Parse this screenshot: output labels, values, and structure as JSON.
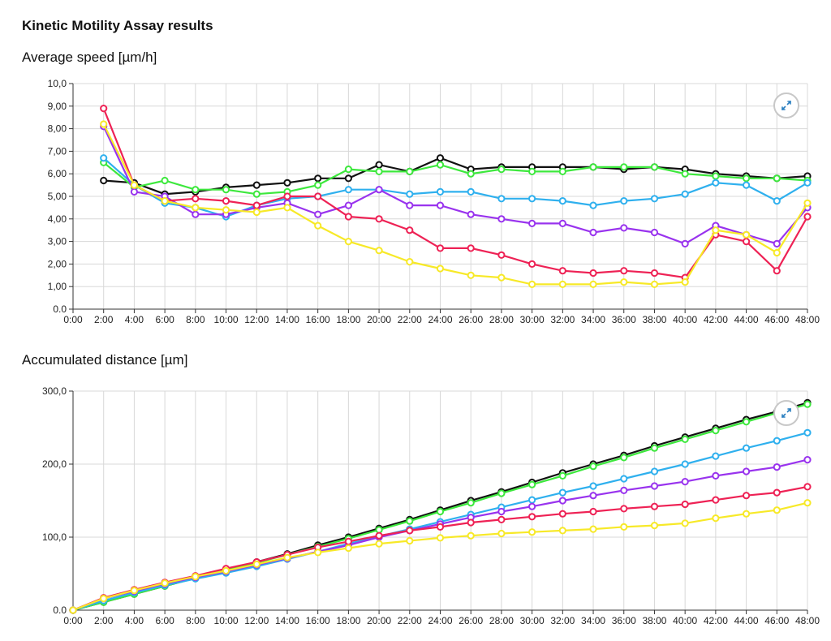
{
  "page": {
    "title": "Kinetic Motility Assay results"
  },
  "colors": {
    "black": "#111111",
    "green": "#3de83d",
    "blue": "#2fb0ee",
    "purple": "#9933ee",
    "red": "#ee2255",
    "yellow": "#f7e928"
  },
  "icons": {
    "expand": "expand-icon"
  },
  "chart_data": [
    {
      "type": "line",
      "title": "Average speed [µm/h]",
      "xlabel": "",
      "ylabel": "",
      "x": [
        "0:00",
        "2:00",
        "4:00",
        "6:00",
        "8:00",
        "10:00",
        "12:00",
        "14:00",
        "16:00",
        "18:00",
        "20:00",
        "22:00",
        "24:00",
        "26:00",
        "28:00",
        "30:00",
        "32:00",
        "34:00",
        "36:00",
        "38:00",
        "40:00",
        "42:00",
        "44:00",
        "46:00",
        "48:00"
      ],
      "ylim": [
        0,
        10
      ],
      "yticks": [
        "0.0",
        "1,00",
        "2,00",
        "3,00",
        "4,00",
        "5,00",
        "6,00",
        "7,00",
        "8,00",
        "9,00",
        "10,0"
      ],
      "grid": true,
      "series": [
        {
          "name": "black",
          "color": "#111111",
          "values": [
            null,
            5.7,
            5.6,
            5.1,
            5.2,
            5.4,
            5.5,
            5.6,
            5.8,
            5.8,
            6.4,
            6.1,
            6.7,
            6.2,
            6.3,
            6.3,
            6.3,
            6.3,
            6.2,
            6.3,
            6.2,
            6.0,
            5.9,
            5.8,
            5.9
          ]
        },
        {
          "name": "green",
          "color": "#3de83d",
          "values": [
            null,
            6.5,
            5.4,
            5.7,
            5.3,
            5.3,
            5.1,
            5.2,
            5.5,
            6.2,
            6.1,
            6.1,
            6.4,
            6.0,
            6.2,
            6.1,
            6.1,
            6.3,
            6.3,
            6.3,
            6.0,
            5.9,
            5.8,
            5.8,
            5.7
          ]
        },
        {
          "name": "blue",
          "color": "#2fb0ee",
          "values": [
            null,
            6.7,
            5.5,
            4.7,
            4.5,
            4.1,
            4.6,
            4.9,
            5.0,
            5.3,
            5.3,
            5.1,
            5.2,
            5.2,
            4.9,
            4.9,
            4.8,
            4.6,
            4.8,
            4.9,
            5.1,
            5.6,
            5.5,
            4.8,
            5.6
          ]
        },
        {
          "name": "purple",
          "color": "#9933ee",
          "values": [
            null,
            8.1,
            5.2,
            5.0,
            4.2,
            4.2,
            4.5,
            4.7,
            4.2,
            4.6,
            5.3,
            4.6,
            4.6,
            4.2,
            4.0,
            3.8,
            3.8,
            3.4,
            3.6,
            3.4,
            2.9,
            3.7,
            3.3,
            2.9,
            4.5
          ]
        },
        {
          "name": "red",
          "color": "#ee2255",
          "values": [
            null,
            8.9,
            5.5,
            4.8,
            4.9,
            4.8,
            4.6,
            5.0,
            5.0,
            4.1,
            4.0,
            3.5,
            2.7,
            2.7,
            2.4,
            2.0,
            1.7,
            1.6,
            1.7,
            1.6,
            1.4,
            3.3,
            3.0,
            1.7,
            4.1
          ]
        },
        {
          "name": "yellow",
          "color": "#f7e928",
          "values": [
            null,
            8.2,
            5.5,
            4.8,
            4.5,
            4.4,
            4.3,
            4.5,
            3.7,
            3.0,
            2.6,
            2.1,
            1.8,
            1.5,
            1.4,
            1.1,
            1.1,
            1.1,
            1.2,
            1.1,
            1.2,
            3.5,
            3.3,
            2.5,
            4.7
          ]
        }
      ]
    },
    {
      "type": "line",
      "title": "Accumulated distance [µm]",
      "xlabel": "",
      "ylabel": "",
      "x": [
        "0:00",
        "2:00",
        "4:00",
        "6:00",
        "8:00",
        "10:00",
        "12:00",
        "14:00",
        "16:00",
        "18:00",
        "20:00",
        "22:00",
        "24:00",
        "26:00",
        "28:00",
        "30:00",
        "32:00",
        "34:00",
        "36:00",
        "38:00",
        "40:00",
        "42:00",
        "44:00",
        "46:00",
        "48:00"
      ],
      "ylim": [
        0,
        300
      ],
      "yticks": [
        "0.0",
        "100,0",
        "200,0",
        "300,0"
      ],
      "ytick_values": [
        0,
        100,
        200,
        300
      ],
      "grid": true,
      "series": [
        {
          "name": "black",
          "color": "#111111",
          "values": [
            0,
            11,
            22,
            33,
            44,
            55,
            66,
            77,
            89,
            100,
            112,
            124,
            137,
            150,
            162,
            175,
            188,
            200,
            212,
            225,
            237,
            249,
            261,
            272,
            284
          ]
        },
        {
          "name": "green",
          "color": "#3de83d",
          "values": [
            0,
            11,
            22,
            33,
            44,
            55,
            65,
            76,
            87,
            98,
            110,
            122,
            135,
            147,
            160,
            172,
            184,
            197,
            209,
            222,
            234,
            246,
            258,
            270,
            282
          ]
        },
        {
          "name": "blue",
          "color": "#2fb0ee",
          "values": [
            0,
            13,
            24,
            34,
            43,
            51,
            60,
            70,
            80,
            91,
            101,
            111,
            121,
            131,
            141,
            151,
            161,
            170,
            180,
            190,
            200,
            211,
            222,
            232,
            243
          ]
        },
        {
          "name": "purple",
          "color": "#9933ee",
          "values": [
            0,
            16,
            26,
            36,
            45,
            53,
            62,
            71,
            80,
            89,
            100,
            109,
            118,
            127,
            135,
            142,
            150,
            157,
            164,
            170,
            176,
            184,
            190,
            196,
            206
          ]
        },
        {
          "name": "red",
          "color": "#ee2255",
          "values": [
            0,
            17,
            28,
            38,
            47,
            57,
            66,
            76,
            86,
            94,
            102,
            109,
            114,
            120,
            124,
            128,
            132,
            135,
            139,
            142,
            145,
            151,
            157,
            161,
            169
          ]
        },
        {
          "name": "yellow",
          "color": "#f7e928",
          "values": [
            0,
            16,
            27,
            37,
            46,
            54,
            63,
            72,
            79,
            85,
            91,
            95,
            99,
            102,
            105,
            107,
            109,
            111,
            114,
            116,
            119,
            126,
            132,
            137,
            147
          ]
        }
      ]
    }
  ]
}
